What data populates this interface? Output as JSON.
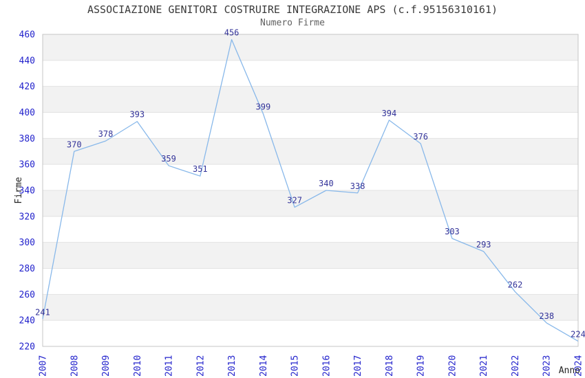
{
  "chart_data": {
    "type": "line",
    "title": "ASSOCIAZIONE GENITORI COSTRUIRE INTEGRAZIONE APS (c.f.95156310161)",
    "subtitle": "Numero Firme",
    "xlabel": "Anno",
    "ylabel": "Firme",
    "x": [
      "2007",
      "2008",
      "2009",
      "2010",
      "2011",
      "2012",
      "2013",
      "2014",
      "2015",
      "2016",
      "2017",
      "2018",
      "2019",
      "2020",
      "2021",
      "2022",
      "2023",
      "2024"
    ],
    "values": [
      241,
      370,
      378,
      393,
      359,
      351,
      456,
      399,
      327,
      340,
      338,
      394,
      376,
      303,
      293,
      262,
      238,
      224
    ],
    "ylim": [
      220,
      460
    ],
    "ytick_step": 20,
    "grid": true,
    "banded_background": true,
    "legend": "none",
    "point_labels_visible": true,
    "colors": {
      "line": "#88b8ea",
      "tick_labels": "#2222cc",
      "point_labels": "#333399",
      "band": "#f2f2f2",
      "grid": "#e2e2e2",
      "border": "#c4c4c4",
      "title": "#3a3a3a",
      "subtitle": "#606060",
      "axis_titles": "#222222",
      "background": "#ffffff"
    }
  }
}
